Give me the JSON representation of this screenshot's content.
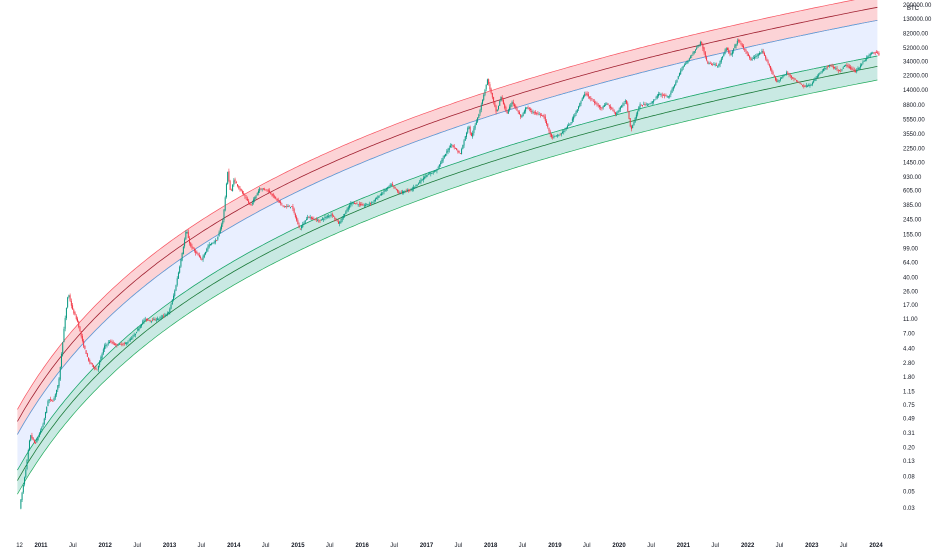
{
  "chart_data": {
    "type": "candlestick",
    "instrument": "BTC",
    "y_scale": "log",
    "grid": false,
    "y_tick_labels": [
      "200000.00",
      "130000.00",
      "82000.00",
      "52000.00",
      "34000.00",
      "22000.00",
      "14000.00",
      "8800.00",
      "5550.00",
      "3550.00",
      "2250.00",
      "1450.00",
      "930.00",
      "605.00",
      "385.00",
      "245.00",
      "155.00",
      "99.00",
      "64.00",
      "40.00",
      "26.00",
      "17.00",
      "11.00",
      "7.00",
      "4.40",
      "2.80",
      "1.80",
      "1.15",
      "0.75",
      "0.49",
      "0.31",
      "0.20",
      "0.13",
      "0.08",
      "0.05",
      "0.03"
    ],
    "x_tick_labels": [
      {
        "label": "12",
        "date": "2010-09-01",
        "year": false
      },
      {
        "label": "2011",
        "date": "2011-01-01",
        "year": true
      },
      {
        "label": "Jul",
        "date": "2011-07-01",
        "year": false
      },
      {
        "label": "2012",
        "date": "2012-01-01",
        "year": true
      },
      {
        "label": "Jul",
        "date": "2012-07-01",
        "year": false
      },
      {
        "label": "2013",
        "date": "2013-01-01",
        "year": true
      },
      {
        "label": "Jul",
        "date": "2013-07-01",
        "year": false
      },
      {
        "label": "2014",
        "date": "2014-01-01",
        "year": true
      },
      {
        "label": "Jul",
        "date": "2014-07-01",
        "year": false
      },
      {
        "label": "2015",
        "date": "2015-01-01",
        "year": true
      },
      {
        "label": "Jul",
        "date": "2015-07-01",
        "year": false
      },
      {
        "label": "2016",
        "date": "2016-01-01",
        "year": true
      },
      {
        "label": "Jul",
        "date": "2016-07-01",
        "year": false
      },
      {
        "label": "2017",
        "date": "2017-01-01",
        "year": true
      },
      {
        "label": "Jul",
        "date": "2017-07-01",
        "year": false
      },
      {
        "label": "2018",
        "date": "2018-01-01",
        "year": true
      },
      {
        "label": "Jul",
        "date": "2018-07-01",
        "year": false
      },
      {
        "label": "2019",
        "date": "2019-01-01",
        "year": true
      },
      {
        "label": "Jul",
        "date": "2019-07-01",
        "year": false
      },
      {
        "label": "2020",
        "date": "2020-01-01",
        "year": true
      },
      {
        "label": "Jul",
        "date": "2020-07-01",
        "year": false
      },
      {
        "label": "2021",
        "date": "2021-01-01",
        "year": true
      },
      {
        "label": "Jul",
        "date": "2021-07-01",
        "year": false
      },
      {
        "label": "2022",
        "date": "2022-01-01",
        "year": true
      },
      {
        "label": "Jul",
        "date": "2022-07-01",
        "year": false
      },
      {
        "label": "2023",
        "date": "2023-01-01",
        "year": true
      },
      {
        "label": "Jul",
        "date": "2023-07-01",
        "year": false
      },
      {
        "label": "2024",
        "date": "2024-01-01",
        "year": true
      }
    ],
    "x_range": [
      "2010-09-01",
      "2024-01-20"
    ],
    "y_range": [
      0.02,
      200000
    ],
    "price_path": [
      [
        "2010-09-05",
        0.03
      ],
      [
        "2010-10-10",
        0.1
      ],
      [
        "2010-11-05",
        0.3
      ],
      [
        "2010-12-01",
        0.22
      ],
      [
        "2011-01-15",
        0.4
      ],
      [
        "2011-02-15",
        0.9
      ],
      [
        "2011-03-15",
        0.85
      ],
      [
        "2011-04-15",
        1.5
      ],
      [
        "2011-05-15",
        8
      ],
      [
        "2011-06-08",
        25
      ],
      [
        "2011-07-01",
        15
      ],
      [
        "2011-08-01",
        10
      ],
      [
        "2011-09-01",
        5
      ],
      [
        "2011-10-01",
        3
      ],
      [
        "2011-11-18",
        2.2
      ],
      [
        "2011-12-31",
        4.7
      ],
      [
        "2012-02-01",
        5.5
      ],
      [
        "2012-03-01",
        4.9
      ],
      [
        "2012-05-01",
        5.1
      ],
      [
        "2012-06-15",
        6.5
      ],
      [
        "2012-08-15",
        11
      ],
      [
        "2012-09-15",
        10.5
      ],
      [
        "2012-11-01",
        11
      ],
      [
        "2012-12-31",
        13.5
      ],
      [
        "2013-02-01",
        25
      ],
      [
        "2013-03-15",
        80
      ],
      [
        "2013-04-10",
        180
      ],
      [
        "2013-05-01",
        110
      ],
      [
        "2013-07-05",
        70
      ],
      [
        "2013-08-15",
        110
      ],
      [
        "2013-10-01",
        130
      ],
      [
        "2013-11-05",
        250
      ],
      [
        "2013-12-01",
        1100
      ],
      [
        "2013-12-18",
        550
      ],
      [
        "2014-01-05",
        850
      ],
      [
        "2014-02-15",
        600
      ],
      [
        "2014-04-10",
        380
      ],
      [
        "2014-06-01",
        650
      ],
      [
        "2014-07-15",
        620
      ],
      [
        "2014-09-01",
        470
      ],
      [
        "2014-10-15",
        370
      ],
      [
        "2014-12-01",
        370
      ],
      [
        "2015-01-14",
        180
      ],
      [
        "2015-03-01",
        270
      ],
      [
        "2015-05-01",
        235
      ],
      [
        "2015-07-15",
        290
      ],
      [
        "2015-08-25",
        215
      ],
      [
        "2015-11-04",
        420
      ],
      [
        "2016-01-15",
        380
      ],
      [
        "2016-03-01",
        420
      ],
      [
        "2016-06-18",
        740
      ],
      [
        "2016-08-01",
        560
      ],
      [
        "2016-10-15",
        640
      ],
      [
        "2016-12-31",
        960
      ],
      [
        "2017-03-01",
        1150
      ],
      [
        "2017-05-25",
        2600
      ],
      [
        "2017-07-15",
        1900
      ],
      [
        "2017-09-01",
        4700
      ],
      [
        "2017-09-15",
        3200
      ],
      [
        "2017-11-01",
        7000
      ],
      [
        "2017-12-17",
        19500
      ],
      [
        "2018-02-06",
        6900
      ],
      [
        "2018-03-05",
        11500
      ],
      [
        "2018-04-06",
        6600
      ],
      [
        "2018-05-05",
        9800
      ],
      [
        "2018-06-28",
        5900
      ],
      [
        "2018-07-25",
        8300
      ],
      [
        "2018-09-01",
        7000
      ],
      [
        "2018-11-01",
        6300
      ],
      [
        "2018-12-15",
        3200
      ],
      [
        "2019-02-01",
        3450
      ],
      [
        "2019-04-03",
        5000
      ],
      [
        "2019-06-26",
        13000
      ],
      [
        "2019-08-01",
        10200
      ],
      [
        "2019-09-26",
        8000
      ],
      [
        "2019-10-26",
        9300
      ],
      [
        "2019-12-17",
        6600
      ],
      [
        "2020-02-13",
        10300
      ],
      [
        "2020-03-12",
        4000
      ],
      [
        "2020-05-01",
        8800
      ],
      [
        "2020-07-01",
        9100
      ],
      [
        "2020-08-17",
        12300
      ],
      [
        "2020-10-15",
        11500
      ],
      [
        "2020-12-31",
        29000
      ],
      [
        "2021-01-20",
        33000
      ],
      [
        "2021-04-14",
        64000
      ],
      [
        "2021-05-19",
        33000
      ],
      [
        "2021-07-20",
        30000
      ],
      [
        "2021-09-06",
        52000
      ],
      [
        "2021-09-29",
        41000
      ],
      [
        "2021-11-10",
        68000
      ],
      [
        "2022-01-24",
        36000
      ],
      [
        "2022-03-28",
        47000
      ],
      [
        "2022-05-12",
        28000
      ],
      [
        "2022-06-18",
        18000
      ],
      [
        "2022-08-15",
        24000
      ],
      [
        "2022-10-01",
        19300
      ],
      [
        "2022-11-21",
        15700
      ],
      [
        "2023-01-01",
        16600
      ],
      [
        "2023-02-20",
        24500
      ],
      [
        "2023-04-14",
        30500
      ],
      [
        "2023-06-15",
        25000
      ],
      [
        "2023-07-13",
        31000
      ],
      [
        "2023-09-11",
        25000
      ],
      [
        "2023-10-24",
        34000
      ],
      [
        "2023-12-05",
        44000
      ],
      [
        "2024-01-11",
        46000
      ],
      [
        "2024-01-20",
        42000
      ]
    ],
    "bands": [
      {
        "kind": "upper",
        "fill": "#f23645",
        "fill_opacity": 0.22,
        "edge": "#f7525f",
        "center_line": "#a02030"
      },
      {
        "kind": "middle",
        "fill": "#2962ff",
        "fill_opacity": 0.1,
        "edge": "#4aa8e8"
      },
      {
        "kind": "lower",
        "fill": "#089981",
        "fill_opacity": 0.22,
        "edge": "#22ab5c",
        "center_line": "#1b7a3a"
      }
    ],
    "colors": {
      "up": "#089981",
      "down": "#f23645",
      "wick": "#5d606b",
      "axis_text": "#131722"
    }
  }
}
